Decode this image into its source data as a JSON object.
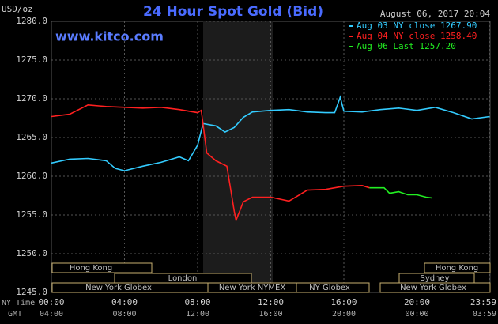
{
  "chart_data": {
    "type": "line",
    "title": "24 Hour Spot Gold (Bid)",
    "subtitle": "August 06, 2017 20:04",
    "watermark": "www.kitco.com",
    "y_label": "USD/oz",
    "x_label": "NY Time",
    "x2_label": "GMT",
    "xlim": [
      0,
      24
    ],
    "xticks": [
      {
        "value": 0,
        "label": "00:00"
      },
      {
        "value": 4,
        "label": "04:00"
      },
      {
        "value": 8,
        "label": "08:00"
      },
      {
        "value": 12,
        "label": "12:00"
      },
      {
        "value": 16,
        "label": "16:00"
      },
      {
        "value": 20,
        "label": "20:00"
      },
      {
        "value": 23.98,
        "label": "23:59"
      }
    ],
    "x2tick_labels": [
      "04:00",
      "08:00",
      "12:00",
      "16:00",
      "20:00",
      "00:00",
      "03:59"
    ],
    "ylim": [
      1245,
      1280
    ],
    "yticks": [
      {
        "value": 1245,
        "label": "1245.0"
      },
      {
        "value": 1250,
        "label": "1250.0"
      },
      {
        "value": 1255,
        "label": "1255.0"
      },
      {
        "value": 1260,
        "label": "1260.0"
      },
      {
        "value": 1265,
        "label": "1265.0"
      },
      {
        "value": 1270,
        "label": "1270.0"
      },
      {
        "value": 1275,
        "label": "1275.0"
      },
      {
        "value": 1280,
        "label": "1280.0"
      }
    ],
    "grid": true,
    "sessions": [
      "Hong Kong",
      "London",
      "New York Globex",
      "New York NYMEX",
      "NY Globex",
      "Hong Kong",
      "Sydney",
      "New York Globex"
    ],
    "series": [
      {
        "name": "Aug 03 NY close 1267.90",
        "color": "#33ccff",
        "x": [
          0,
          1,
          2,
          3,
          3.5,
          4,
          5,
          6,
          7,
          7.5,
          8,
          8.3,
          9,
          9.5,
          10,
          10.5,
          11,
          12,
          13,
          14,
          15,
          15.5,
          15.8,
          16,
          17,
          18,
          19,
          20,
          21,
          22,
          23,
          23.98
        ],
        "values": [
          1261.7,
          1262.2,
          1262.3,
          1262.0,
          1261.0,
          1260.7,
          1261.3,
          1261.8,
          1262.5,
          1262.0,
          1264.0,
          1266.8,
          1266.5,
          1265.7,
          1266.3,
          1267.6,
          1268.3,
          1268.5,
          1268.6,
          1268.3,
          1268.2,
          1268.2,
          1270.2,
          1268.4,
          1268.3,
          1268.6,
          1268.8,
          1268.5,
          1268.9,
          1268.2,
          1267.4,
          1267.7
        ]
      },
      {
        "name": "Aug 04 NY close 1258.40",
        "color": "#ff2020",
        "x": [
          0,
          1,
          2,
          3,
          4,
          5,
          6,
          7,
          8,
          8.2,
          8.5,
          9,
          9.6,
          10,
          10.1,
          10.5,
          11,
          12,
          13,
          14,
          15,
          16,
          17,
          17.4
        ],
        "values": [
          1267.7,
          1268.0,
          1269.2,
          1269.0,
          1268.9,
          1268.8,
          1268.9,
          1268.6,
          1268.2,
          1268.5,
          1263.0,
          1262.0,
          1261.3,
          1255.5,
          1254.3,
          1256.7,
          1257.3,
          1257.3,
          1256.8,
          1258.2,
          1258.3,
          1258.7,
          1258.8,
          1258.5
        ]
      },
      {
        "name": "Aug 06 Last 1257.20",
        "color": "#22ee22",
        "x": [
          17.4,
          18.2,
          18.5,
          19,
          19.5,
          20,
          20.5,
          20.8
        ],
        "values": [
          1258.5,
          1258.5,
          1257.8,
          1258.0,
          1257.6,
          1257.6,
          1257.3,
          1257.2
        ]
      }
    ]
  }
}
